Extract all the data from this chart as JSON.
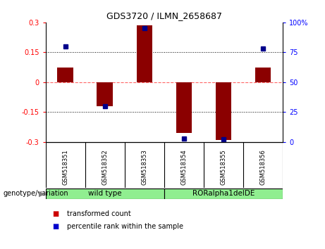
{
  "title": "GDS3720 / ILMN_2658687",
  "samples": [
    "GSM518351",
    "GSM518352",
    "GSM518353",
    "GSM518354",
    "GSM518355",
    "GSM518356"
  ],
  "transformed_count": [
    0.075,
    -0.12,
    0.285,
    -0.255,
    -0.29,
    0.075
  ],
  "percentile_rank": [
    80,
    30,
    95,
    3,
    2,
    78
  ],
  "group_labels": [
    "wild type",
    "RORalpha1delDE"
  ],
  "group_ranges": [
    [
      0,
      2
    ],
    [
      3,
      5
    ]
  ],
  "group_color": "#90EE90",
  "ylim_left": [
    -0.3,
    0.3
  ],
  "ylim_right": [
    0,
    100
  ],
  "yticks_left": [
    -0.3,
    -0.15,
    0,
    0.15,
    0.3
  ],
  "yticks_right": [
    0,
    25,
    50,
    75,
    100
  ],
  "bar_color": "#8B0000",
  "marker_color": "#00008B",
  "hline_color": "#FF6666",
  "dotline_color": "black",
  "background_color": "#ffffff",
  "sample_label_bg": "#c8c8c8",
  "legend_items": [
    "transformed count",
    "percentile rank within the sample"
  ],
  "legend_colors": [
    "#cc0000",
    "#0000cc"
  ],
  "bar_width": 0.4,
  "genotype_label": "genotype/variation"
}
